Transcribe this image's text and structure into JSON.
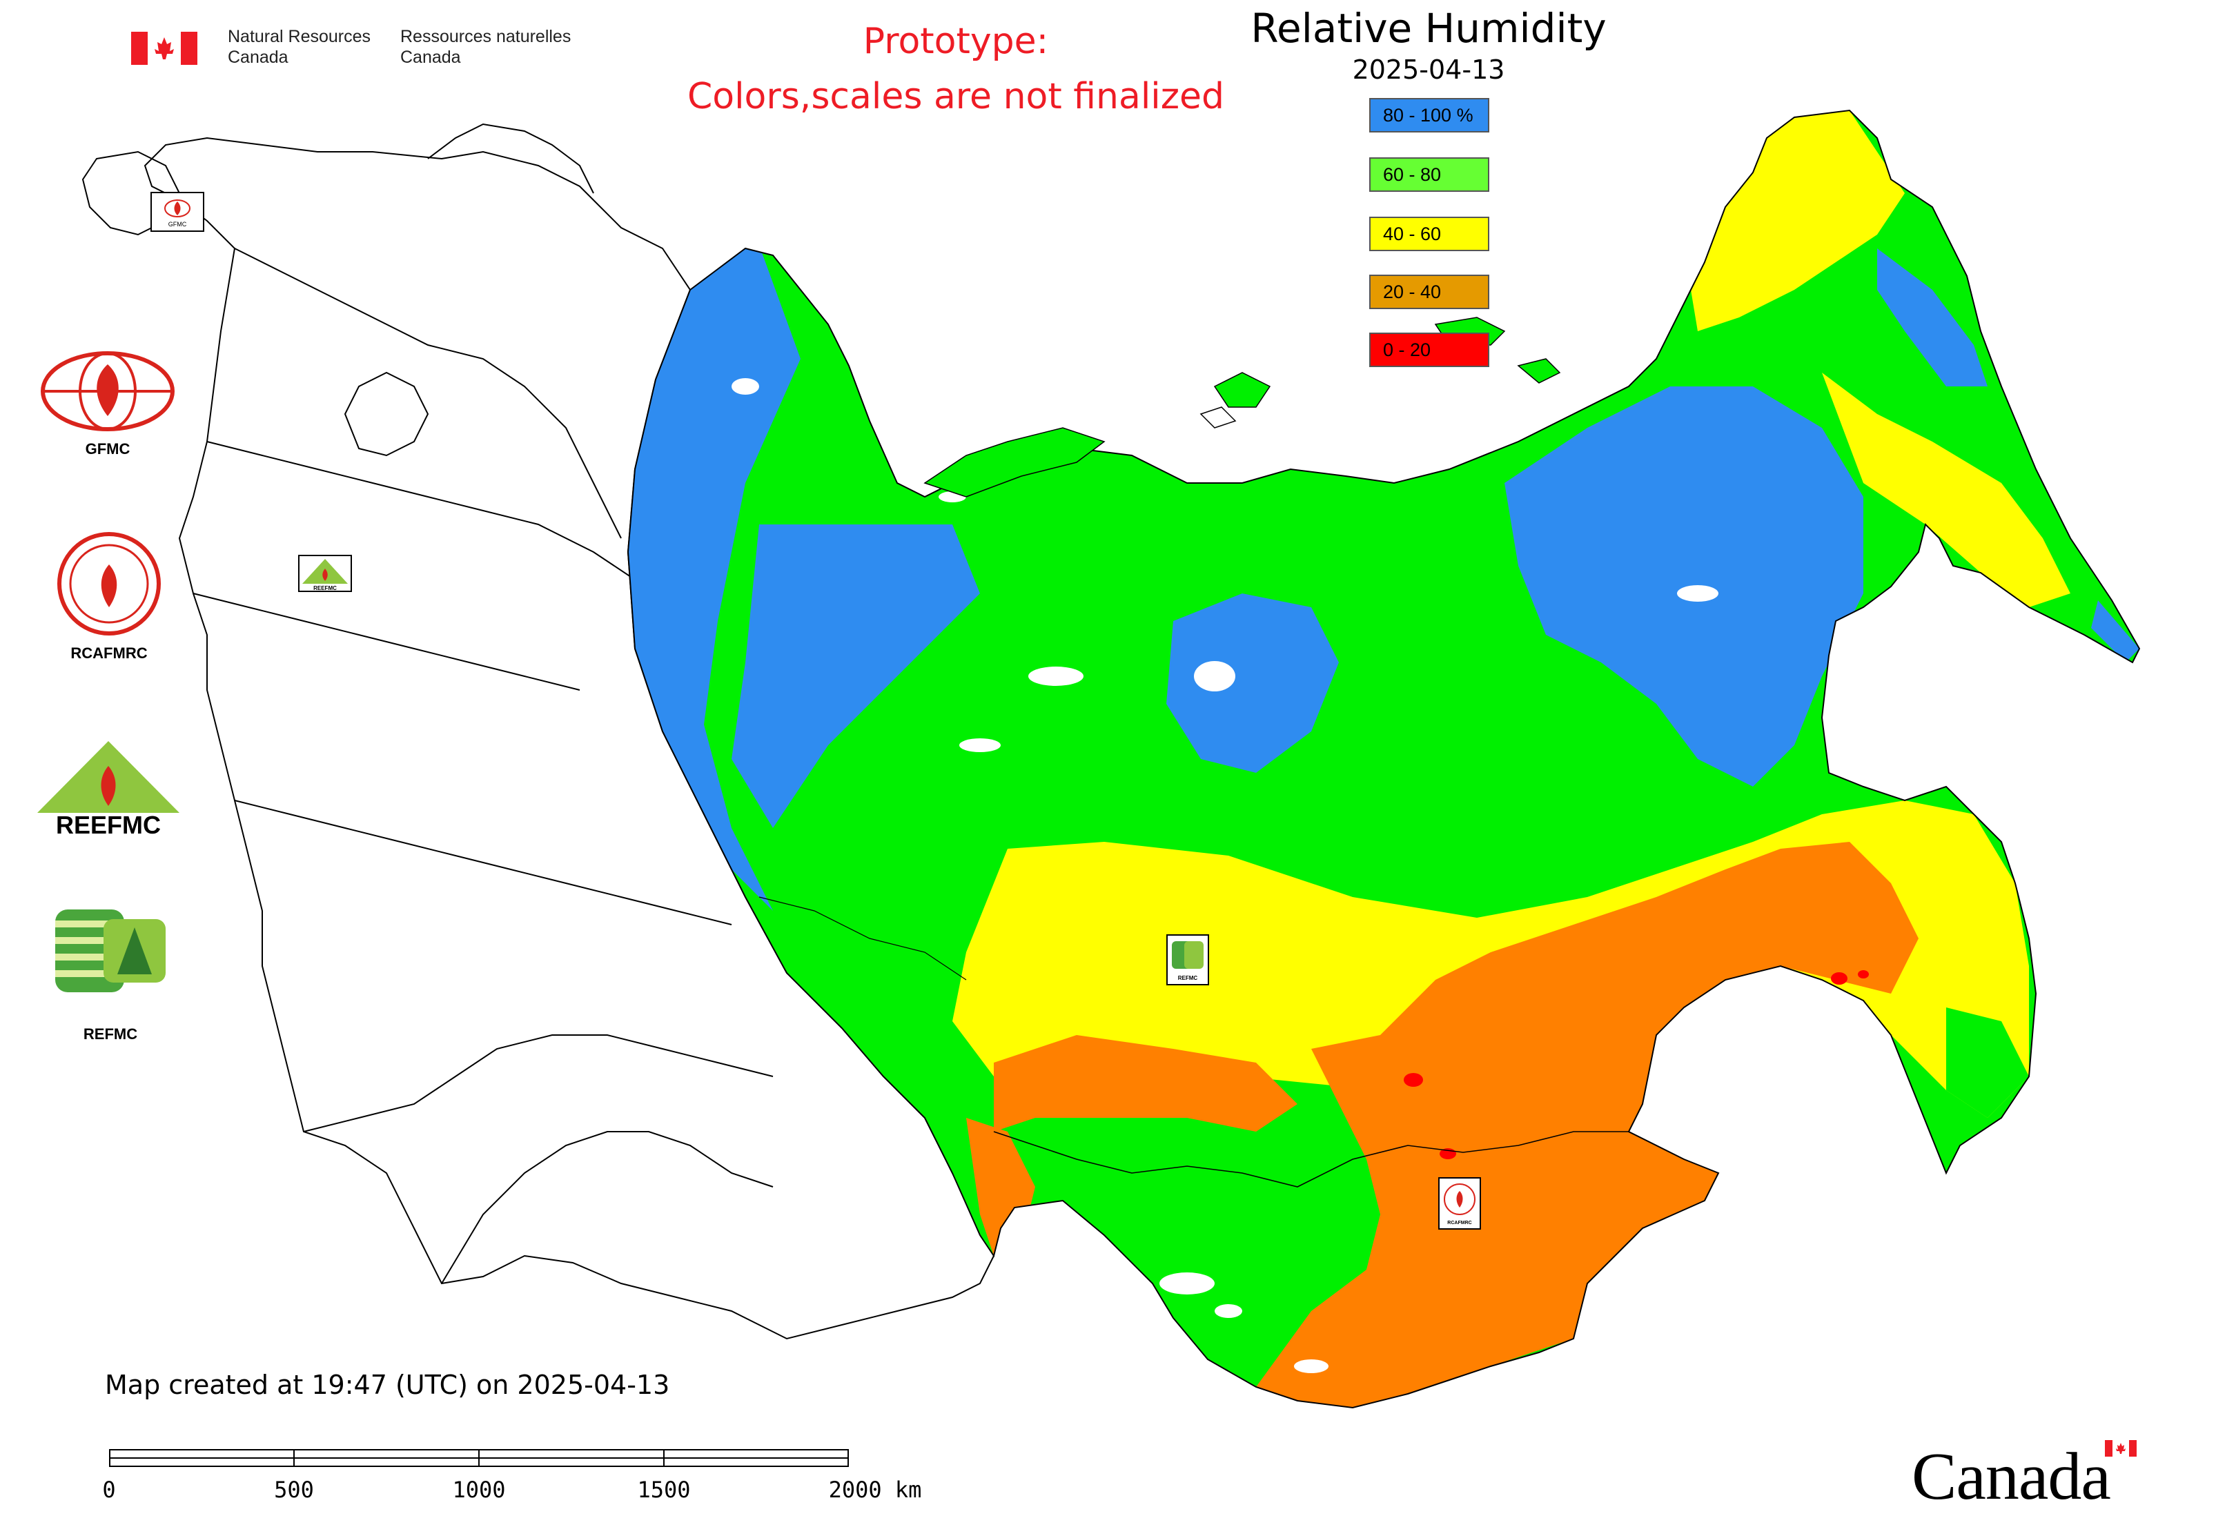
{
  "agency": {
    "english_lines": [
      "Natural Resources",
      "Canada"
    ],
    "french_lines": [
      "Ressources naturelles",
      "Canada"
    ],
    "flag_icon": "canada-flag-icon"
  },
  "prototype_notice": {
    "lines": [
      "Prototype:",
      "Colors,scales are not finalized"
    ],
    "color": "#ee1c25"
  },
  "legend": {
    "title": "Relative Humidity",
    "date": "2025-04-13",
    "items": [
      {
        "label": "80 - 100 %",
        "color": "#2f8cf0"
      },
      {
        "label": "60 - 80",
        "color": "#66ff33"
      },
      {
        "label": "40 - 60",
        "color": "#ffff00"
      },
      {
        "label": "20 - 40",
        "color": "#e59a00"
      },
      {
        "label": "0 - 20",
        "color": "#ff0000"
      }
    ]
  },
  "map_colors": {
    "blue": "#2f8cf0",
    "green": "#00f000",
    "yellow": "#ffff00",
    "orange": "#ff8000",
    "red": "#ff0000",
    "outline": "#000000"
  },
  "logos": [
    {
      "label": "GFMC",
      "icon": "gfmc-logo-icon"
    },
    {
      "label": "RCAFMRC",
      "icon": "rcafmrc-logo-icon"
    },
    {
      "label": "",
      "icon": "reefmc-logo-icon",
      "wordmark": "REEFMC"
    },
    {
      "label": "REFMC",
      "icon": "refmc-logo-icon"
    }
  ],
  "map_markers": [
    {
      "name": "gfmc-marker",
      "label": "GFMC"
    },
    {
      "name": "reefmc-marker",
      "label": "REEFMC"
    },
    {
      "name": "refmc-marker",
      "label": "REFMC"
    },
    {
      "name": "rcafmrc-marker",
      "label": "RCAFMRC"
    }
  ],
  "created_note": "Map created at 19:47 (UTC) on 2025-04-13",
  "scale": {
    "ticks": [
      "0",
      "500",
      "1000",
      "1500",
      "2000 km"
    ]
  },
  "wordmark": {
    "text": "Canada",
    "icon": "canada-wordmark-flag-icon"
  }
}
